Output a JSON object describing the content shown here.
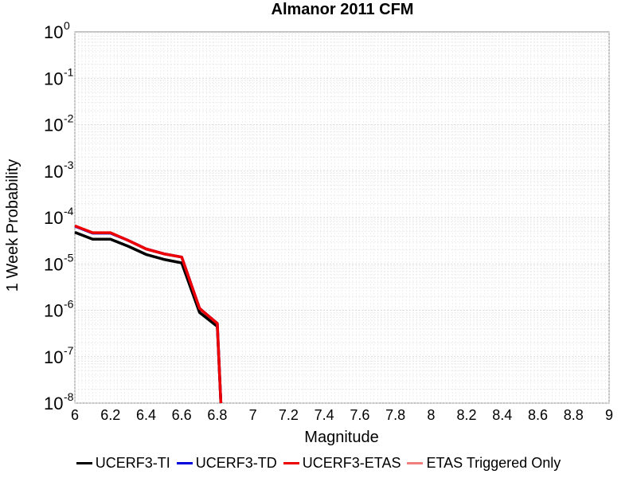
{
  "chart_data": {
    "type": "line",
    "title": "Almanor 2011 CFM",
    "xlabel": "Magnitude",
    "ylabel": "1 Week Probability",
    "xlim": [
      6,
      9
    ],
    "ylim": [
      1e-08,
      1
    ],
    "yscale": "log",
    "grid": true,
    "legend_position": "bottom",
    "xticks": [
      "6",
      "6.2",
      "6.4",
      "6.6",
      "6.8",
      "7",
      "7.2",
      "7.4",
      "7.6",
      "7.8",
      "8",
      "8.2",
      "8.4",
      "8.6",
      "8.8",
      "9"
    ],
    "ytick_base": "10",
    "ytick_exponents": [
      "0",
      "-1",
      "-2",
      "-3",
      "-4",
      "-5",
      "-6",
      "-7",
      "-8"
    ],
    "series": [
      {
        "name": "UCERF3-TI",
        "color": "#000000",
        "x": [
          6.0,
          6.1,
          6.2,
          6.3,
          6.4,
          6.5,
          6.6,
          6.7,
          6.8,
          6.82
        ],
        "y": [
          4.8e-05,
          3.4e-05,
          3.4e-05,
          2.4e-05,
          1.6e-05,
          1.25e-05,
          1.05e-05,
          9e-07,
          4.5e-07,
          1e-08
        ]
      },
      {
        "name": "UCERF3-TD",
        "color": "#0000dd",
        "x": [
          6.0,
          6.1,
          6.2,
          6.3,
          6.4,
          6.5,
          6.6,
          6.7,
          6.8,
          6.82
        ],
        "y": [
          6.5e-05,
          4.6e-05,
          4.6e-05,
          3.2e-05,
          2.1e-05,
          1.65e-05,
          1.4e-05,
          1.1e-06,
          5.2e-07,
          1e-08
        ]
      },
      {
        "name": "UCERF3-ETAS",
        "color": "#ee0000",
        "x": [
          6.0,
          6.1,
          6.2,
          6.3,
          6.4,
          6.5,
          6.6,
          6.7,
          6.8,
          6.82
        ],
        "y": [
          6.6e-05,
          4.7e-05,
          4.7e-05,
          3.2e-05,
          2.1e-05,
          1.65e-05,
          1.4e-05,
          1.1e-06,
          5.2e-07,
          1e-08
        ]
      },
      {
        "name": "ETAS Triggered Only",
        "color": "#f08080",
        "x": [],
        "y": []
      }
    ]
  }
}
